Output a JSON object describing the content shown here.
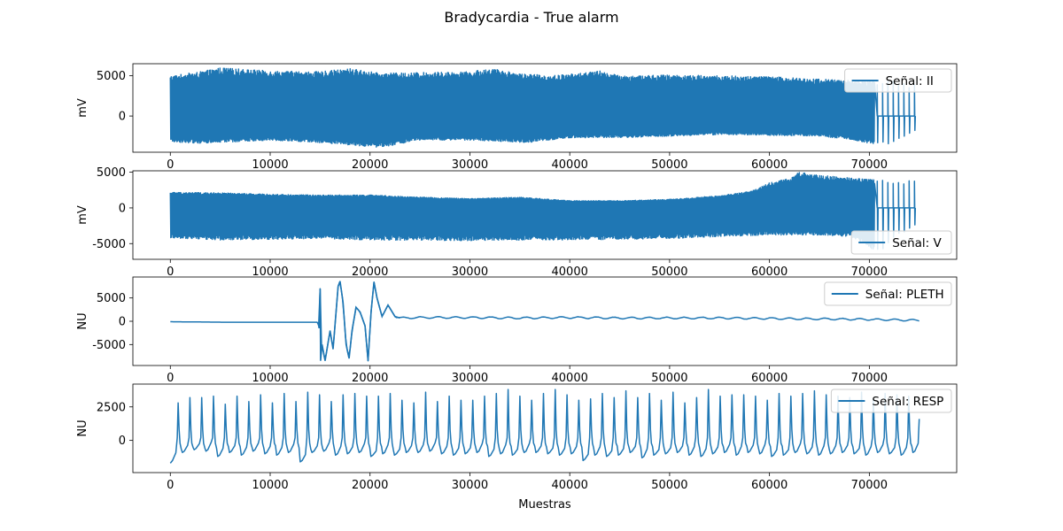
{
  "figure": {
    "title": "Bradycardia - True alarm"
  },
  "chart_data": [
    {
      "type": "line",
      "series": [
        {
          "name": "Señal: II",
          "color": "#1f77b4"
        }
      ],
      "ylabel": "mV",
      "xlabel": "",
      "xlim": [
        -3750,
        78750
      ],
      "ylim": [
        -4500,
        6500
      ],
      "xticks": [
        0,
        10000,
        20000,
        30000,
        40000,
        50000,
        60000,
        70000
      ],
      "yticks": [
        0,
        5000
      ],
      "legend": "upper right",
      "signal": {
        "style": "dense",
        "length": 75000,
        "upper": [
          [
            0,
            5000
          ],
          [
            3000,
            5500
          ],
          [
            5000,
            6000
          ],
          [
            10000,
            5600
          ],
          [
            15000,
            5500
          ],
          [
            18000,
            5900
          ],
          [
            21000,
            5300
          ],
          [
            25000,
            5400
          ],
          [
            30000,
            5500
          ],
          [
            32000,
            5900
          ],
          [
            35000,
            5300
          ],
          [
            38000,
            5000
          ],
          [
            40000,
            5200
          ],
          [
            43000,
            5600
          ],
          [
            45000,
            5000
          ],
          [
            50000,
            5100
          ],
          [
            55000,
            5000
          ],
          [
            60000,
            4900
          ],
          [
            65000,
            4600
          ],
          [
            70000,
            4300
          ],
          [
            72000,
            4400
          ],
          [
            75000,
            4000
          ]
        ],
        "lower": [
          [
            0,
            -3200
          ],
          [
            3000,
            -3400
          ],
          [
            10000,
            -3000
          ],
          [
            15000,
            -3300
          ],
          [
            18000,
            -3600
          ],
          [
            21000,
            -3900
          ],
          [
            25000,
            -3000
          ],
          [
            30000,
            -3000
          ],
          [
            36000,
            -3300
          ],
          [
            40000,
            -2700
          ],
          [
            45000,
            -2700
          ],
          [
            50000,
            -2500
          ],
          [
            55000,
            -2300
          ],
          [
            60000,
            -2400
          ],
          [
            65000,
            -2500
          ],
          [
            68000,
            -2900
          ],
          [
            71000,
            -3600
          ],
          [
            72000,
            -3500
          ],
          [
            75000,
            -1500
          ]
        ],
        "sparse_from": 70500
      }
    },
    {
      "type": "line",
      "series": [
        {
          "name": "Señal: V",
          "color": "#1f77b4"
        }
      ],
      "ylabel": "mV",
      "xlabel": "",
      "xlim": [
        -3750,
        78750
      ],
      "ylim": [
        -7200,
        5200
      ],
      "xticks": [
        0,
        10000,
        20000,
        30000,
        40000,
        50000,
        60000,
        70000
      ],
      "yticks": [
        -5000,
        0,
        5000
      ],
      "legend": "lower right",
      "signal": {
        "style": "dense",
        "length": 75000,
        "upper": [
          [
            0,
            2200
          ],
          [
            5000,
            2100
          ],
          [
            10000,
            1900
          ],
          [
            15000,
            1800
          ],
          [
            20000,
            1800
          ],
          [
            25000,
            1500
          ],
          [
            30000,
            1300
          ],
          [
            35000,
            1500
          ],
          [
            40000,
            1000
          ],
          [
            45000,
            1000
          ],
          [
            50000,
            1200
          ],
          [
            55000,
            1700
          ],
          [
            58000,
            2300
          ],
          [
            60000,
            3500
          ],
          [
            62000,
            4200
          ],
          [
            63000,
            5000
          ],
          [
            65000,
            4600
          ],
          [
            68000,
            4200
          ],
          [
            70000,
            4000
          ],
          [
            72000,
            4000
          ],
          [
            75000,
            3800
          ]
        ],
        "lower": [
          [
            0,
            -4200
          ],
          [
            5000,
            -4500
          ],
          [
            10000,
            -4400
          ],
          [
            15000,
            -4300
          ],
          [
            20000,
            -4500
          ],
          [
            25000,
            -4500
          ],
          [
            30000,
            -4600
          ],
          [
            35000,
            -4500
          ],
          [
            40000,
            -4500
          ],
          [
            45000,
            -4400
          ],
          [
            50000,
            -4300
          ],
          [
            55000,
            -4000
          ],
          [
            60000,
            -3800
          ],
          [
            65000,
            -3800
          ],
          [
            68000,
            -4000
          ],
          [
            70000,
            -5500
          ],
          [
            71000,
            -6800
          ],
          [
            72000,
            -5000
          ],
          [
            75000,
            -2000
          ]
        ],
        "sparse_from": 70500
      }
    },
    {
      "type": "line",
      "series": [
        {
          "name": "Señal: PLETH",
          "color": "#1f77b4"
        }
      ],
      "ylabel": "NU",
      "xlabel": "",
      "xlim": [
        -3750,
        78750
      ],
      "ylim": [
        -9500,
        9500
      ],
      "xticks": [
        0,
        10000,
        20000,
        30000,
        40000,
        50000,
        60000,
        70000
      ],
      "yticks": [
        -5000,
        0,
        5000
      ],
      "legend": "upper right",
      "signal": {
        "style": "pleth",
        "length": 75000,
        "points": [
          [
            0,
            -100
          ],
          [
            5000,
            -200
          ],
          [
            10000,
            -200
          ],
          [
            14800,
            -200
          ],
          [
            14900,
            -1500
          ],
          [
            15000,
            7000
          ],
          [
            15050,
            -8500
          ],
          [
            15200,
            -5000
          ],
          [
            15500,
            -8500
          ],
          [
            16000,
            -2000
          ],
          [
            16300,
            -6000
          ],
          [
            16800,
            7500
          ],
          [
            17000,
            8600
          ],
          [
            17300,
            4000
          ],
          [
            17600,
            -5000
          ],
          [
            17900,
            -8000
          ],
          [
            18200,
            -2000
          ],
          [
            18600,
            3000
          ],
          [
            19000,
            2000
          ],
          [
            19500,
            -1000
          ],
          [
            19800,
            -8500
          ],
          [
            20100,
            2000
          ],
          [
            20400,
            8400
          ],
          [
            20700,
            5000
          ],
          [
            21200,
            1000
          ],
          [
            21800,
            3500
          ],
          [
            22500,
            1000
          ],
          [
            23000,
            700
          ],
          [
            25000,
            800
          ],
          [
            30000,
            800
          ],
          [
            35000,
            700
          ],
          [
            40000,
            800
          ],
          [
            45000,
            700
          ],
          [
            50000,
            700
          ],
          [
            55000,
            700
          ],
          [
            60000,
            600
          ],
          [
            65000,
            500
          ],
          [
            70000,
            400
          ],
          [
            75000,
            200
          ]
        ]
      }
    },
    {
      "type": "line",
      "series": [
        {
          "name": "Señal: RESP",
          "color": "#1f77b4"
        }
      ],
      "ylabel": "NU",
      "xlabel": "Muestras",
      "xlim": [
        -3750,
        78750
      ],
      "ylim": [
        -2400,
        4200
      ],
      "xticks": [
        0,
        10000,
        20000,
        30000,
        40000,
        50000,
        60000,
        70000
      ],
      "yticks": [
        0,
        2500
      ],
      "legend": "upper right",
      "signal": {
        "style": "resp",
        "length": 75000,
        "period": 1180,
        "peaks": [
          2800,
          3200,
          3200,
          3300,
          2700,
          3300,
          2900,
          3400,
          2800,
          3500,
          2900,
          3600,
          3400,
          2900,
          3400,
          3500,
          3300,
          3300,
          3500,
          3000,
          2800,
          3600,
          2900,
          3300,
          3000,
          3000,
          3300,
          3500,
          3800,
          3300,
          3000,
          3500,
          3800,
          3400,
          3000,
          3100,
          3500,
          3200,
          3700,
          3200,
          3500,
          3000,
          3600,
          2800,
          3200,
          3800,
          3300,
          3400,
          3400,
          3300,
          3000,
          3500,
          3300,
          3500,
          3700,
          3400,
          3300,
          3200,
          3600,
          3100,
          3500,
          3400,
          3300,
          3400
        ],
        "troughs": [
          -1700,
          -1000,
          -800,
          -900,
          -1300,
          -1000,
          -1200,
          -900,
          -1100,
          -1200,
          -1000,
          -1700,
          -1000,
          -900,
          -1200,
          -1100,
          -1000,
          -1300,
          -1100,
          -1200,
          -1000,
          -1000,
          -900,
          -1100,
          -1200,
          -1100,
          -1000,
          -1300,
          -1100,
          -1200,
          -1000,
          -1000,
          -1100,
          -1200,
          -1100,
          -1600,
          -1200,
          -1300,
          -1200,
          -1000,
          -1400,
          -1200,
          -1100,
          -1000,
          -1200,
          -1300,
          -1100,
          -1000,
          -1200,
          -1000,
          -1100,
          -1300,
          -1200,
          -1000,
          -1100,
          -1200,
          -1100,
          -1000,
          -1100,
          -1200,
          -1000,
          -1100,
          -1200,
          -1000
        ]
      }
    }
  ]
}
